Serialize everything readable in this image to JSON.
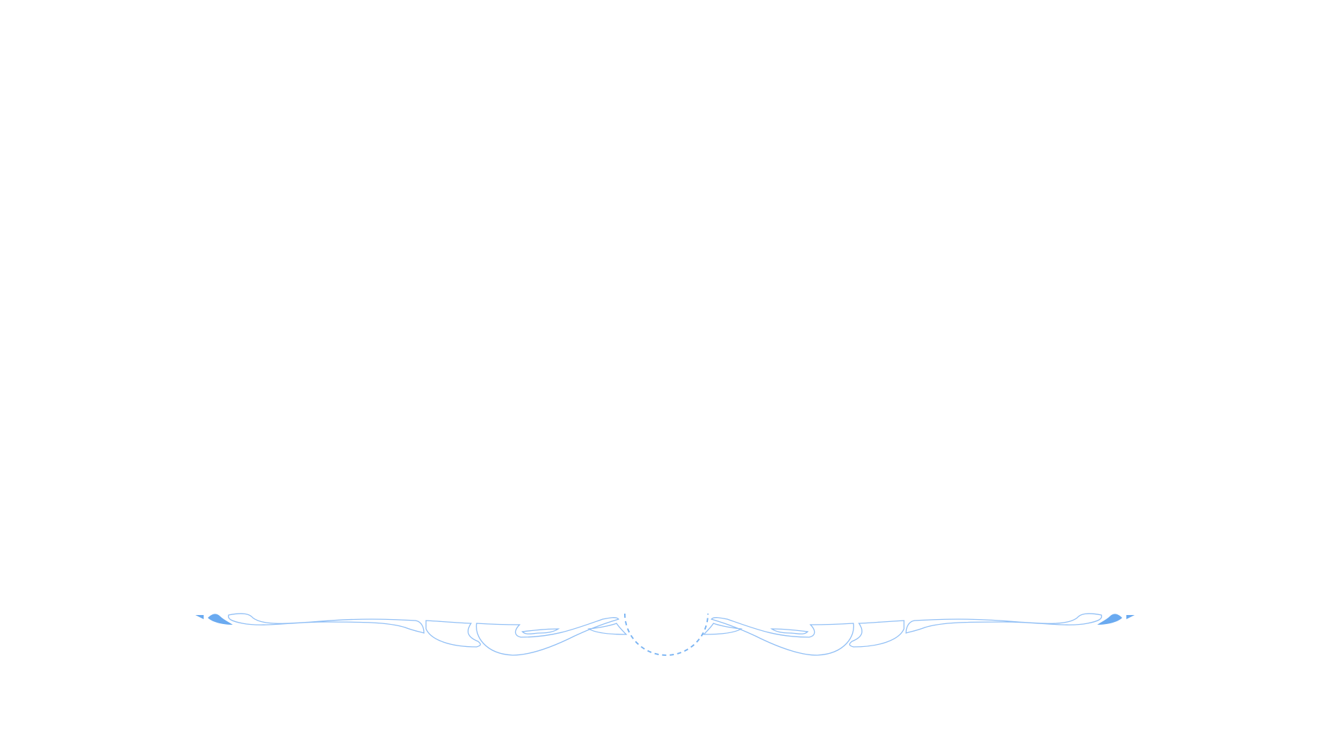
{
  "page": {
    "background": "#ffffff"
  },
  "ornament": {
    "icon": "flourish-divider-icon",
    "stroke_color": "#8fbef5",
    "fill_color": "#6aaaf0",
    "dash_color": "#7ab4f3"
  }
}
